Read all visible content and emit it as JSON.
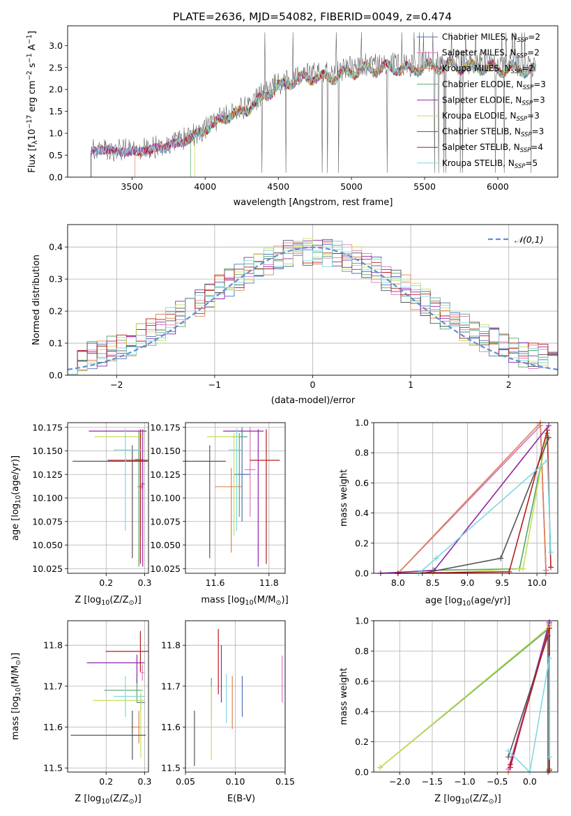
{
  "figure": {
    "title": "PLATE=2636, MJD=54082, FIBERID=0049, z=0.474"
  },
  "series_colors": [
    "#4c72b0",
    "#e377c2",
    "#dd8452",
    "#55a868",
    "#8e24aa",
    "#c6df54",
    "#555555",
    "#b71c1c",
    "#7fd7e0"
  ],
  "legend": {
    "labels": [
      "Chabrier MILES, N",
      "Salpeter MILES, N",
      "Kroupa MILES, N",
      "Chabrier ELODIE, N",
      "Salpeter ELODIE, N",
      "Kroupa ELODIE, N",
      "Chabrier STELIB, N",
      "Salpeter STELIB, N",
      "Kroupa STELIB, N"
    ],
    "ssp_sub": "SSP",
    "nssp": [
      "=2",
      "=2",
      "=2",
      "=3",
      "=3",
      "=3",
      "=3",
      "=4",
      "=5"
    ]
  },
  "chart_data": [
    {
      "id": "spectrum",
      "type": "line",
      "xlabel": "wavelength [Angstrom, rest frame]",
      "ylabel": "Flux [f",
      "ylabel_sub": "λ",
      "ylabel_mid": "10",
      "ylabel_sup1": "−17",
      "ylabel_unit": " erg cm",
      "ylabel_sup2": "−2",
      "ylabel_s": " s",
      "ylabel_sup3": "−1",
      "ylabel_a": " A",
      "ylabel_sup4": "−1",
      "ylabel_end": "]",
      "xlim": [
        3060,
        6410
      ],
      "ylim": [
        0,
        3.45
      ],
      "xticks": [
        "3500",
        "4000",
        "4500",
        "5000",
        "5500",
        "6000"
      ],
      "yticks": [
        "0.0",
        "0.5",
        "1.0",
        "1.5",
        "2.0",
        "2.5",
        "3.0"
      ],
      "envelope": {
        "x": [
          3220,
          3300,
          3400,
          3500,
          3600,
          3700,
          3800,
          3900,
          4000,
          4100,
          4200,
          4300,
          4400,
          4500,
          4600,
          4700,
          4800,
          4900,
          5000,
          5100,
          5200,
          5300,
          5400,
          5500,
          5600,
          5700,
          5800,
          5900,
          6000,
          6100,
          6200,
          6260
        ],
        "y": [
          0.6,
          0.66,
          0.62,
          0.6,
          0.63,
          0.7,
          0.78,
          0.93,
          1.12,
          1.35,
          1.5,
          1.62,
          1.92,
          2.13,
          2.28,
          2.38,
          2.35,
          2.4,
          2.5,
          2.55,
          2.58,
          2.6,
          2.55,
          2.62,
          2.62,
          2.65,
          2.6,
          2.62,
          2.55,
          2.58,
          2.55,
          2.5
        ]
      },
      "series_start": [
        3220,
        3220,
        3520,
        3900,
        3220,
        3930,
        3220,
        3220,
        3220
      ]
    },
    {
      "id": "residuals",
      "type": "bar",
      "xlabel": "(data-model)/error",
      "ylabel": "Normed distribution",
      "legend_label": "𝒩(0,1)",
      "xlim": [
        -2.5,
        2.5
      ],
      "ylim": [
        0,
        0.47
      ],
      "xticks": [
        "−2",
        "−1",
        "0",
        "1",
        "2"
      ],
      "yticks": [
        "0.0",
        "0.1",
        "0.2",
        "0.3",
        "0.4"
      ],
      "bin_width": 0.1
    },
    {
      "id": "age-vs-Z",
      "type": "scatter",
      "xlabel": "Z [log",
      "xlabel_sub": "10",
      "xlabel_rest": "(Z/Z",
      "xlabel_sun": "⊙",
      "xlabel_end": ")]",
      "ylabel": "age  [log",
      "ylabel_sub": "10",
      "ylabel_rest": "(age/yr)]",
      "xlim": [
        0.1,
        0.31
      ],
      "ylim": [
        10.02,
        10.18
      ],
      "xticks": [
        "0.2",
        "0.3"
      ],
      "yticks": [
        "10.025",
        "10.050",
        "10.075",
        "10.100",
        "10.125",
        "10.150",
        "10.175"
      ],
      "points": [
        {
          "x": 0.295,
          "xerr": [
            0.005,
            0.005
          ],
          "y": 10.115,
          "yerr": [
            0.002,
            0.002
          ]
        },
        {
          "x": 0.289,
          "xerr": [
            0.008,
            0.008
          ],
          "y": 10.112,
          "yerr": [
            0.002,
            0.002
          ]
        },
        {
          "x": 0.292,
          "xerr": [
            0.005,
            0.005
          ],
          "y": 10.112,
          "yerr": [
            0.002,
            0.002
          ]
        },
        {
          "x": 0.285,
          "xerr": [
            0.01,
            0.01
          ],
          "y": 10.141,
          "yerr": [
            0.114,
            0.03
          ]
        },
        {
          "x": 0.295,
          "xerr": [
            0.14,
            0.01
          ],
          "y": 10.171,
          "yerr": [
            0.144,
            0.002
          ]
        },
        {
          "x": 0.29,
          "xerr": [
            0.12,
            0.01
          ],
          "y": 10.165,
          "yerr": [
            0.105,
            0.004
          ]
        },
        {
          "x": 0.268,
          "xerr": [
            0.155,
            0.04
          ],
          "y": 10.139,
          "yerr": [
            0.103,
            0.017
          ]
        },
        {
          "x": 0.289,
          "xerr": [
            0.085,
            0.02
          ],
          "y": 10.14,
          "yerr": [
            0.11,
            0.033
          ]
        },
        {
          "x": 0.25,
          "xerr": [
            0.03,
            0.04
          ],
          "y": 10.151,
          "yerr": [
            0.086,
            0.023
          ]
        }
      ]
    },
    {
      "id": "age-vs-mass",
      "type": "scatter",
      "xlabel": "mass [log",
      "xlabel_sub": "10",
      "xlabel_rest": "(M/M",
      "xlabel_sun": "⊙",
      "xlabel_end": ")]",
      "xlim": [
        11.49,
        11.86
      ],
      "ylim": [
        10.02,
        10.18
      ],
      "xticks": [
        "11.6",
        "11.8"
      ],
      "yticks": [
        "10.025",
        "10.050",
        "10.075",
        "10.100",
        "10.125",
        "10.150",
        "10.175"
      ],
      "points": [
        {
          "x": 11.7,
          "xerr": [
            0.03,
            0.03
          ],
          "y": 10.125,
          "yerr": [
            0.05,
            0.05
          ]
        },
        {
          "x": 11.73,
          "xerr": [
            0.02,
            0.02
          ],
          "y": 10.13,
          "yerr": [
            0.05,
            0.045
          ]
        },
        {
          "x": 11.66,
          "xerr": [
            0.06,
            0.04
          ],
          "y": 10.112,
          "yerr": [
            0.07,
            0.02
          ]
        },
        {
          "x": 11.69,
          "xerr": [
            0.03,
            0.03
          ],
          "y": 10.165,
          "yerr": [
            0.085,
            0.004
          ]
        },
        {
          "x": 11.76,
          "xerr": [
            0.13,
            0.02
          ],
          "y": 10.171,
          "yerr": [
            0.144,
            0.002
          ]
        },
        {
          "x": 11.67,
          "xerr": [
            0.1,
            0.02
          ],
          "y": 10.165,
          "yerr": [
            0.105,
            0.004
          ]
        },
        {
          "x": 11.58,
          "xerr": [
            0.1,
            0.06
          ],
          "y": 10.139,
          "yerr": [
            0.103,
            0.017
          ]
        },
        {
          "x": 11.79,
          "xerr": [
            0.06,
            0.05
          ],
          "y": 10.14,
          "yerr": [
            0.11,
            0.033
          ]
        },
        {
          "x": 11.68,
          "xerr": [
            0.03,
            0.02
          ],
          "y": 10.151,
          "yerr": [
            0.086,
            0.023
          ]
        }
      ]
    },
    {
      "id": "weight-vs-age",
      "type": "line",
      "xlabel": "age  [log",
      "xlabel_sub": "10",
      "xlabel_rest": "(age/yr)]",
      "ylabel": "mass weight",
      "xlim": [
        7.65,
        10.3
      ],
      "ylim": [
        0,
        1
      ],
      "xticks": [
        "8.0",
        "8.5",
        "9.0",
        "9.5",
        "10.0"
      ],
      "yticks": [
        "0.0",
        "0.2",
        "0.4",
        "0.6",
        "0.8",
        "1.0"
      ],
      "series": [
        {
          "x": [
            8.0,
            10.05,
            10.13
          ],
          "y": [
            0.0,
            0.98,
            0.02
          ]
        },
        {
          "x": [
            8.0,
            10.05,
            10.13
          ],
          "y": [
            0.0,
            0.98,
            0.02
          ]
        },
        {
          "x": [
            8.0,
            10.05,
            10.13
          ],
          "y": [
            0.0,
            1.0,
            0.0
          ]
        },
        {
          "x": [
            8.5,
            9.75,
            10.15
          ],
          "y": [
            0.02,
            0.03,
            0.93
          ]
        },
        {
          "x": [
            7.75,
            8.52,
            10.17
          ],
          "y": [
            0.0,
            0.02,
            0.98
          ]
        },
        {
          "x": [
            8.5,
            9.8,
            10.15
          ],
          "y": [
            0.0,
            0.03,
            0.95
          ]
        },
        {
          "x": [
            8.35,
            9.48,
            10.17
          ],
          "y": [
            0.0,
            0.1,
            0.9
          ]
        },
        {
          "x": [
            8.0,
            9.6,
            10.15,
            10.2
          ],
          "y": [
            0.0,
            0.01,
            0.95,
            0.04
          ]
        },
        {
          "x": [
            8.3,
            8.55,
            10.15,
            10.2
          ],
          "y": [
            0.0,
            0.1,
            0.75,
            0.14
          ]
        }
      ]
    },
    {
      "id": "mass-vs-Z",
      "type": "scatter",
      "xlabel": "Z [log",
      "xlabel_sub": "10",
      "xlabel_rest": "(Z/Z",
      "xlabel_sun": "⊙",
      "xlabel_end": ")]",
      "ylabel": "mass [log",
      "ylabel_sub": "10",
      "ylabel_rest": "(M/M",
      "ylabel_sun": "⊙",
      "ylabel_end": ")]",
      "xlim": [
        0.1,
        0.31
      ],
      "ylim": [
        11.49,
        11.86
      ],
      "xticks": [
        "0.2",
        "0.3"
      ],
      "yticks": [
        "11.5",
        "11.6",
        "11.7",
        "11.8"
      ],
      "points": [
        {
          "x": 0.29,
          "xerr": [
            0.01,
            0.01
          ],
          "y": 11.66,
          "yerr": [
            0.02,
            0.02
          ]
        },
        {
          "x": 0.294,
          "xerr": [
            0.005,
            0.005
          ],
          "y": 11.733,
          "yerr": [
            0.02,
            0.02
          ]
        },
        {
          "x": 0.285,
          "xerr": [
            0.02,
            0.005
          ],
          "y": 11.6,
          "yerr": [
            0.04,
            0.04
          ]
        },
        {
          "x": 0.28,
          "xerr": [
            0.085,
            0.015
          ],
          "y": 11.69,
          "yerr": [
            0.03,
            0.03
          ]
        },
        {
          "x": 0.28,
          "xerr": [
            0.13,
            0.02
          ],
          "y": 11.757,
          "yerr": [
            0.05,
            0.02
          ]
        },
        {
          "x": 0.29,
          "xerr": [
            0.125,
            0.01
          ],
          "y": 11.665,
          "yerr": [
            0.14,
            0.02
          ]
        },
        {
          "x": 0.268,
          "xerr": [
            0.16,
            0.035
          ],
          "y": 11.58,
          "yerr": [
            0.06,
            0.06
          ]
        },
        {
          "x": 0.289,
          "xerr": [
            0.09,
            0.02
          ],
          "y": 11.785,
          "yerr": [
            0.05,
            0.05
          ]
        },
        {
          "x": 0.25,
          "xerr": [
            0.03,
            0.05
          ],
          "y": 11.675,
          "yerr": [
            0.05,
            0.05
          ]
        }
      ]
    },
    {
      "id": "mass-vs-ebv",
      "type": "scatter",
      "xlabel": "E(B-V)",
      "xlim": [
        0.05,
        0.15
      ],
      "ylim": [
        11.49,
        11.86
      ],
      "xticks": [
        "0.05",
        "0.10",
        "0.15"
      ],
      "yticks": [
        "11.5",
        "11.6",
        "11.7",
        "11.8"
      ],
      "points": [
        {
          "x": 0.107,
          "y": 11.675,
          "yerr": [
            0.05,
            0.05
          ]
        },
        {
          "x": 0.147,
          "y": 11.715,
          "yerr": [
            0.055,
            0.06
          ]
        },
        {
          "x": 0.097,
          "y": 11.66,
          "yerr": [
            0.065,
            0.065
          ]
        },
        {
          "x": 0.076,
          "y": 11.69,
          "yerr": [
            0.07,
            0.03
          ]
        },
        {
          "x": 0.086,
          "y": 11.72,
          "yerr": [
            0.06,
            0.08
          ]
        },
        {
          "x": 0.076,
          "y": 11.61,
          "yerr": [
            0.09,
            0.09
          ]
        },
        {
          "x": 0.059,
          "y": 11.575,
          "yerr": [
            0.07,
            0.065
          ]
        },
        {
          "x": 0.083,
          "y": 11.75,
          "yerr": [
            0.07,
            0.09
          ]
        },
        {
          "x": 0.091,
          "y": 11.67,
          "yerr": [
            0.06,
            0.06
          ]
        }
      ]
    },
    {
      "id": "weight-vs-Z",
      "type": "line",
      "xlabel": "Z [log",
      "xlabel_sub": "10",
      "xlabel_rest": "(Z/Z",
      "xlabel_sun": "⊙",
      "xlabel_end": ")]",
      "ylabel": "mass weight",
      "xlim": [
        -2.4,
        0.43
      ],
      "ylim": [
        0,
        1
      ],
      "xticks": [
        "−2.0",
        "−1.5",
        "−1.0",
        "−0.5",
        "0.0"
      ],
      "yticks": [
        "0.0",
        "0.2",
        "0.4",
        "0.6",
        "0.8",
        "1.0"
      ],
      "series": [
        {
          "x": [
            -0.33,
            0.3,
            0.3
          ],
          "y": [
            0.02,
            0.98,
            0.02
          ]
        },
        {
          "x": [
            -0.33,
            0.3,
            0.3
          ],
          "y": [
            0.02,
            0.98,
            0.02
          ]
        },
        {
          "x": [
            -0.33,
            0.3,
            0.3
          ],
          "y": [
            0.0,
            0.97,
            0.01
          ]
        },
        {
          "x": [
            -2.3,
            0.3,
            0.3
          ],
          "y": [
            0.03,
            0.95,
            0.02
          ]
        },
        {
          "x": [
            -0.3,
            0.3,
            0.3
          ],
          "y": [
            0.03,
            0.99,
            0.01
          ]
        },
        {
          "x": [
            -2.3,
            0.3,
            0.3
          ],
          "y": [
            0.03,
            0.96,
            0.01
          ]
        },
        {
          "x": [
            -0.33,
            0.28,
            0.28
          ],
          "y": [
            0.1,
            0.9,
            0.0
          ]
        },
        {
          "x": [
            -0.3,
            0.3,
            0.3
          ],
          "y": [
            0.05,
            0.95,
            0.01
          ]
        },
        {
          "x": [
            -0.33,
            0.0,
            0.3,
            0.3
          ],
          "y": [
            0.14,
            0.0,
            0.75,
            0.1
          ]
        }
      ]
    }
  ]
}
